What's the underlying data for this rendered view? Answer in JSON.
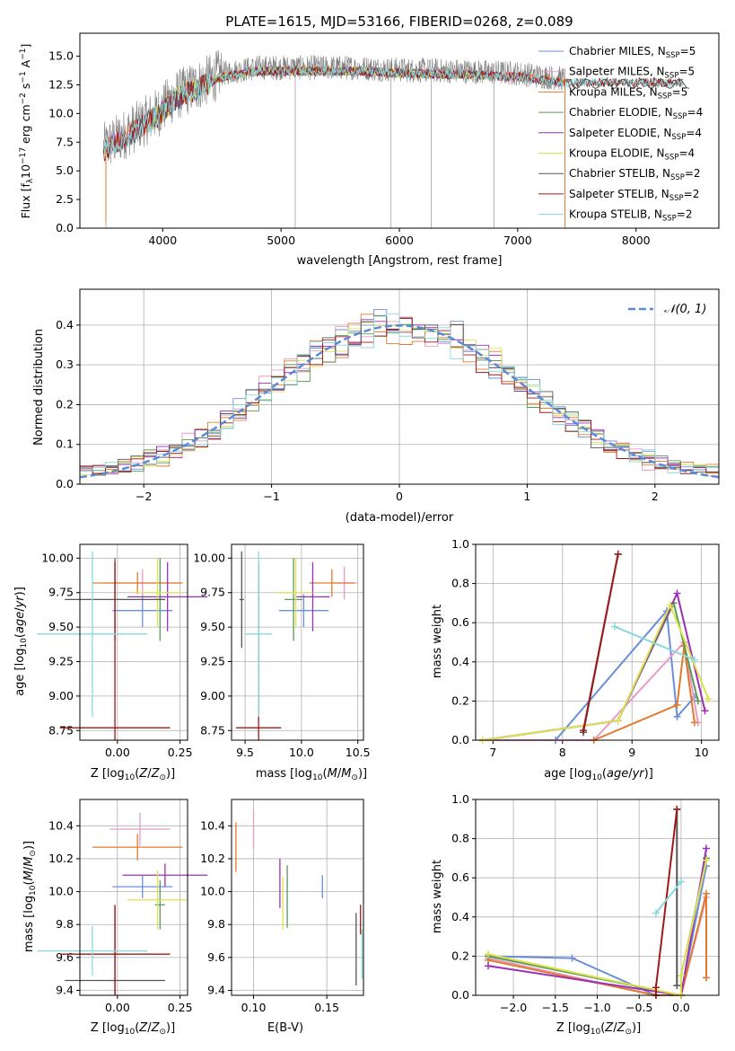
{
  "colors": {
    "Chabrier MILES": "#6a8fd8",
    "Salpeter MILES": "#e89ac6",
    "Kroupa MILES": "#e07b2e",
    "Chabrier ELODIE": "#5a9a56",
    "Salpeter ELODIE": "#9b30b8",
    "Kroupa ELODIE": "#dde24f",
    "Chabrier STELIB": "#555555",
    "Salpeter STELIB": "#a01818",
    "Kroupa STELIB": "#8ad8dc",
    "normal_curve": "#5b8bd6",
    "data": "#808080"
  },
  "chart_data": [
    {
      "id": "spectrum",
      "type": "line",
      "title": "PLATE=1615, MJD=53166, FIBERID=0268, z=0.089",
      "xlabel": "wavelength [Angstrom, rest frame]",
      "ylabel": "Flux [f_λ 10^-17 erg cm^-2 s^-1 A^-1]",
      "xlim": [
        3300,
        8700
      ],
      "ylim": [
        0,
        17
      ],
      "xticks": [
        "4000",
        "5000",
        "6000",
        "7000",
        "8000"
      ],
      "yticks": [
        "0.0",
        "2.5",
        "5.0",
        "7.5",
        "10.0",
        "12.5",
        "15.0"
      ],
      "grid": false,
      "legend_position": "right",
      "legend": [
        {
          "label": "Chabrier MILES, N",
          "sub": "SSP",
          "tail": "=5"
        },
        {
          "label": "Salpeter MILES, N",
          "sub": "SSP",
          "tail": "=5"
        },
        {
          "label": "Kroupa MILES, N",
          "sub": "SSP",
          "tail": "=5"
        },
        {
          "label": "Chabrier ELODIE, N",
          "sub": "SSP",
          "tail": "=4"
        },
        {
          "label": "Salpeter ELODIE, N",
          "sub": "SSP",
          "tail": "=4"
        },
        {
          "label": "Kroupa ELODIE, N",
          "sub": "SSP",
          "tail": "=4"
        },
        {
          "label": "Chabrier STELIB, N",
          "sub": "SSP",
          "tail": "=2"
        },
        {
          "label": "Salpeter STELIB, N",
          "sub": "SSP",
          "tail": "=2"
        },
        {
          "label": "Kroupa STELIB, N",
          "sub": "SSP",
          "tail": "=2"
        }
      ],
      "data_envelope": [
        [
          3500,
          7.0
        ],
        [
          3650,
          8.0
        ],
        [
          3800,
          9.0
        ],
        [
          3950,
          10.0
        ],
        [
          4100,
          11.5
        ],
        [
          4300,
          12.5
        ],
        [
          4500,
          13.5
        ],
        [
          4800,
          14.0
        ],
        [
          5200,
          14.0
        ],
        [
          5600,
          14.0
        ],
        [
          6000,
          13.8
        ],
        [
          6500,
          13.7
        ],
        [
          7000,
          13.5
        ],
        [
          7400,
          13.0
        ]
      ],
      "model_ranges": {
        "MILES": [
          3520,
          7400
        ],
        "ELODIE": [
          3900,
          6800
        ],
        "STELIB": [
          3500,
          8400
        ]
      }
    },
    {
      "id": "residuals",
      "type": "histogram",
      "xlabel": "(data-model)/error",
      "ylabel": "Normed distribution",
      "xlim": [
        -2.5,
        2.5
      ],
      "ylim": [
        0,
        0.49
      ],
      "xticks": [
        "−2",
        "−1",
        "0",
        "1",
        "2"
      ],
      "yticks": [
        "0.0",
        "0.1",
        "0.2",
        "0.3",
        "0.4"
      ],
      "grid": true,
      "legend_position": "top-right",
      "curve_label": "𝒩(0, 1)",
      "bin_width": 0.1
    },
    {
      "id": "age_vs_Z",
      "type": "errorbar",
      "xlabel": "Z [log10(Z/Z⊙)]",
      "ylabel": "age [log10(age/yr)]",
      "xlim": [
        -0.15,
        0.28
      ],
      "ylim": [
        8.68,
        10.1
      ],
      "xticks": [
        "0.00",
        "0.25"
      ],
      "yticks": [
        "8.75",
        "9.00",
        "9.25",
        "9.50",
        "9.75",
        "10.00"
      ],
      "points": [
        {
          "series": "Chabrier MILES",
          "x": 0.1,
          "xerr": 0.12,
          "y": 9.62,
          "yerr": 0.12
        },
        {
          "series": "Salpeter MILES",
          "x": 0.1,
          "xerr": 0.15,
          "y": 9.82,
          "yerr": 0.1
        },
        {
          "series": "Kroupa MILES",
          "x": 0.08,
          "xerr": 0.18,
          "y": 9.82,
          "yerr": 0.08
        },
        {
          "series": "Chabrier ELODIE",
          "x": 0.17,
          "xerr": 0.02,
          "y": 9.7,
          "yerr": 0.3
        },
        {
          "series": "Salpeter ELODIE",
          "x": 0.2,
          "xerr": 0.16,
          "y": 9.72,
          "yerr": 0.25
        },
        {
          "series": "Kroupa ELODIE",
          "x": 0.16,
          "xerr": 0.1,
          "y": 9.75,
          "yerr": 0.25
        },
        {
          "series": "Chabrier STELIB",
          "x": -0.01,
          "xerr": 0.2,
          "y": 9.7,
          "yerr": 0.3
        },
        {
          "series": "Salpeter STELIB",
          "x": -0.01,
          "xerr": 0.22,
          "y": 8.77,
          "yerr": 1.2
        },
        {
          "series": "Kroupa STELIB",
          "x": -0.1,
          "xerr": 0.22,
          "y": 9.45,
          "yerr": 0.6
        }
      ]
    },
    {
      "id": "age_vs_mass",
      "type": "errorbar",
      "xlabel": "mass [log10(M/M⊙)]",
      "xlim": [
        9.38,
        10.55
      ],
      "ylim": [
        8.68,
        10.1
      ],
      "xticks": [
        "9.5",
        "10.0",
        "10.5"
      ],
      "yticks": [
        "8.75",
        "9.00",
        "9.25",
        "9.50",
        "9.75",
        "10.00"
      ],
      "points": [
        {
          "series": "Chabrier MILES",
          "x": 10.02,
          "xerr": 0.22,
          "y": 9.62,
          "yerr": 0.12
        },
        {
          "series": "Salpeter MILES",
          "x": 10.38,
          "xerr": 0.12,
          "y": 9.82,
          "yerr": 0.12
        },
        {
          "series": "Kroupa MILES",
          "x": 10.27,
          "xerr": 0.2,
          "y": 9.82,
          "yerr": 0.1
        },
        {
          "series": "Chabrier ELODIE",
          "x": 9.93,
          "xerr": 0.08,
          "y": 9.7,
          "yerr": 0.3
        },
        {
          "series": "Salpeter ELODIE",
          "x": 10.1,
          "xerr": 0.15,
          "y": 9.72,
          "yerr": 0.25
        },
        {
          "series": "Kroupa ELODIE",
          "x": 9.95,
          "xerr": 0.15,
          "y": 9.75,
          "yerr": 0.25
        },
        {
          "series": "Chabrier STELIB",
          "x": 9.47,
          "xerr": 0.02,
          "y": 9.7,
          "yerr": 0.35
        },
        {
          "series": "Salpeter STELIB",
          "x": 9.62,
          "xerr": 0.2,
          "y": 8.77,
          "yerr": 1.2
        },
        {
          "series": "Kroupa STELIB",
          "x": 9.62,
          "xerr": 0.12,
          "y": 9.45,
          "yerr": 0.6
        }
      ]
    },
    {
      "id": "weight_vs_age",
      "type": "line",
      "xlabel": "age [log10(age/yr)]",
      "ylabel": "mass weight",
      "xlim": [
        6.75,
        10.25
      ],
      "ylim": [
        0,
        1
      ],
      "xticks": [
        "7",
        "8",
        "9",
        "10"
      ],
      "yticks": [
        "0.0",
        "0.2",
        "0.4",
        "0.6",
        "0.8",
        "1.0"
      ],
      "grid": true,
      "series": [
        {
          "name": "Chabrier MILES",
          "x": [
            6.85,
            7.9,
            9.5,
            9.65,
            9.9
          ],
          "y": [
            0.0,
            0.0,
            0.66,
            0.12,
            0.22
          ]
        },
        {
          "name": "Salpeter MILES",
          "x": [
            6.85,
            8.45,
            9.75,
            9.95
          ],
          "y": [
            0.0,
            0.0,
            0.5,
            0.09
          ]
        },
        {
          "name": "Kroupa MILES",
          "x": [
            8.45,
            9.65,
            9.75,
            9.9
          ],
          "y": [
            0.0,
            0.18,
            0.48,
            0.09
          ]
        },
        {
          "name": "Chabrier ELODIE",
          "x": [
            6.85,
            8.8,
            9.6,
            9.95
          ],
          "y": [
            0.0,
            0.1,
            0.7,
            0.2
          ]
        },
        {
          "name": "Salpeter ELODIE",
          "x": [
            6.85,
            8.8,
            9.65,
            10.05
          ],
          "y": [
            0.0,
            0.1,
            0.75,
            0.15
          ]
        },
        {
          "name": "Kroupa ELODIE",
          "x": [
            6.85,
            8.8,
            9.55,
            10.1
          ],
          "y": [
            0.0,
            0.1,
            0.69,
            0.21
          ]
        },
        {
          "name": "Chabrier STELIB",
          "x": [
            8.3,
            8.8
          ],
          "y": [
            0.04,
            0.95
          ]
        },
        {
          "name": "Salpeter STELIB",
          "x": [
            8.3,
            8.8
          ],
          "y": [
            0.05,
            0.95
          ]
        },
        {
          "name": "Kroupa STELIB",
          "x": [
            8.75,
            9.9
          ],
          "y": [
            0.58,
            0.41
          ]
        }
      ]
    },
    {
      "id": "mass_vs_Z",
      "type": "errorbar",
      "xlabel": "Z [log10(Z/Z⊙)]",
      "ylabel": "mass [log10(M/M⊙)]",
      "xlim": [
        -0.15,
        0.28
      ],
      "ylim": [
        9.37,
        10.56
      ],
      "xticks": [
        "0.00",
        "0.25"
      ],
      "yticks": [
        "9.4",
        "9.6",
        "9.8",
        "10.0",
        "10.2",
        "10.4"
      ],
      "points": [
        {
          "series": "Chabrier MILES",
          "x": 0.1,
          "xerr": 0.12,
          "y": 10.03,
          "yerr": 0.07
        },
        {
          "series": "Salpeter MILES",
          "x": 0.09,
          "xerr": 0.12,
          "y": 10.38,
          "yerr": 0.1
        },
        {
          "series": "Kroupa MILES",
          "x": 0.08,
          "xerr": 0.18,
          "y": 10.27,
          "yerr": 0.08
        },
        {
          "series": "Chabrier ELODIE",
          "x": 0.17,
          "xerr": 0.02,
          "y": 9.92,
          "yerr": 0.15
        },
        {
          "series": "Salpeter ELODIE",
          "x": 0.19,
          "xerr": 0.17,
          "y": 10.1,
          "yerr": 0.07
        },
        {
          "series": "Kroupa ELODIE",
          "x": 0.16,
          "xerr": 0.12,
          "y": 9.95,
          "yerr": 0.18
        },
        {
          "series": "Chabrier STELIB",
          "x": -0.01,
          "xerr": 0.2,
          "y": 9.46,
          "yerr": 0.45
        },
        {
          "series": "Salpeter STELIB",
          "x": -0.01,
          "xerr": 0.22,
          "y": 9.62,
          "yerr": 0.3
        },
        {
          "series": "Kroupa STELIB",
          "x": -0.1,
          "xerr": 0.22,
          "y": 9.64,
          "yerr": 0.15
        }
      ]
    },
    {
      "id": "mass_vs_ebv",
      "type": "errorbar",
      "xlabel": "E(B-V)",
      "xlim": [
        0.085,
        0.175
      ],
      "ylim": [
        9.37,
        10.56
      ],
      "xticks": [
        "0.10",
        "0.15"
      ],
      "yticks": [
        "9.4",
        "9.6",
        "9.8",
        "10.0",
        "10.2",
        "10.4"
      ],
      "points": [
        {
          "series": "Chabrier MILES",
          "x": 0.147,
          "y": 10.03,
          "yerr": 0.07
        },
        {
          "series": "Salpeter MILES",
          "x": 0.1,
          "y": 10.38,
          "yerr": 0.12
        },
        {
          "series": "Kroupa MILES",
          "x": 0.088,
          "y": 10.27,
          "yerr": 0.15
        },
        {
          "series": "Chabrier ELODIE",
          "x": 0.123,
          "y": 9.97,
          "yerr": 0.19
        },
        {
          "series": "Salpeter ELODIE",
          "x": 0.118,
          "y": 10.05,
          "yerr": 0.15
        },
        {
          "series": "Kroupa ELODIE",
          "x": 0.12,
          "y": 9.93,
          "yerr": 0.16
        },
        {
          "series": "Chabrier STELIB",
          "x": 0.17,
          "y": 9.65,
          "yerr": 0.22
        },
        {
          "series": "Salpeter STELIB",
          "x": 0.173,
          "y": 9.83,
          "yerr": 0.09
        },
        {
          "series": "Kroupa STELIB",
          "x": 0.174,
          "y": 9.62,
          "yerr": 0.15
        }
      ]
    },
    {
      "id": "weight_vs_Z",
      "type": "line",
      "xlabel": "Z [log10(Z/Z⊙)]",
      "ylabel": "mass weight",
      "xlim": [
        -2.45,
        0.45
      ],
      "ylim": [
        0,
        1
      ],
      "xticks": [
        "−2.0",
        "−1.5",
        "−1.0",
        "−0.5",
        "0.0"
      ],
      "yticks": [
        "0.0",
        "0.2",
        "0.4",
        "0.6",
        "0.8",
        "1.0"
      ],
      "grid": true,
      "series": [
        {
          "name": "Chabrier MILES",
          "x": [
            -2.3,
            -1.3,
            -0.3,
            0.0,
            0.3
          ],
          "y": [
            0.2,
            0.19,
            0.0,
            0.0,
            0.66
          ]
        },
        {
          "name": "Salpeter MILES",
          "x": [
            -2.3,
            -0.3,
            0.0,
            0.3,
            0.3
          ],
          "y": [
            0.19,
            0.0,
            0.0,
            0.5,
            0.09
          ]
        },
        {
          "name": "Kroupa MILES",
          "x": [
            -2.3,
            -0.3,
            0.0,
            0.3,
            0.3
          ],
          "y": [
            0.18,
            0.0,
            0.0,
            0.52,
            0.09
          ]
        },
        {
          "name": "Chabrier ELODIE",
          "x": [
            -2.3,
            0.0,
            0.0,
            0.3
          ],
          "y": [
            0.2,
            0.0,
            0.1,
            0.7
          ]
        },
        {
          "name": "Salpeter ELODIE",
          "x": [
            -2.3,
            0.0,
            0.3
          ],
          "y": [
            0.15,
            0.0,
            0.75
          ]
        },
        {
          "name": "Kroupa ELODIE",
          "x": [
            -2.3,
            0.0,
            0.0,
            0.3
          ],
          "y": [
            0.21,
            0.0,
            0.1,
            0.69
          ]
        },
        {
          "name": "Chabrier STELIB",
          "x": [
            -0.05,
            -0.05
          ],
          "y": [
            0.05,
            0.95
          ]
        },
        {
          "name": "Salpeter STELIB",
          "x": [
            -0.3,
            -0.3,
            -0.05
          ],
          "y": [
            0.0,
            0.04,
            0.95
          ]
        },
        {
          "name": "Kroupa STELIB",
          "x": [
            -0.3,
            0.0
          ],
          "y": [
            0.42,
            0.58
          ]
        }
      ]
    }
  ]
}
